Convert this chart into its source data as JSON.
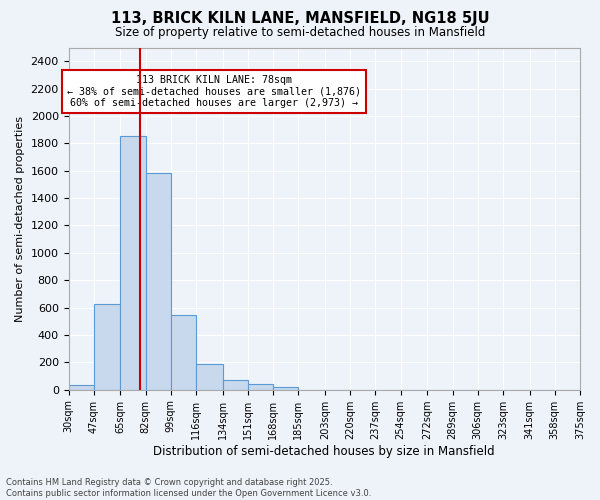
{
  "title": "113, BRICK KILN LANE, MANSFIELD, NG18 5JU",
  "subtitle": "Size of property relative to semi-detached houses in Mansfield",
  "xlabel": "Distribution of semi-detached houses by size in Mansfield",
  "ylabel": "Number of semi-detached properties",
  "bar_color": "#c8d9ed",
  "bar_edge_color": "#5b9bd5",
  "background_color": "#eef3f9",
  "grid_color": "#ffffff",
  "bins": [
    30,
    47,
    65,
    82,
    99,
    116,
    134,
    151,
    168,
    185,
    203,
    220,
    237,
    254,
    272,
    289,
    306,
    323,
    341,
    358,
    375
  ],
  "bin_labels": [
    "30sqm",
    "47sqm",
    "65sqm",
    "82sqm",
    "99sqm",
    "116sqm",
    "134sqm",
    "151sqm",
    "168sqm",
    "185sqm",
    "203sqm",
    "220sqm",
    "237sqm",
    "254sqm",
    "272sqm",
    "289sqm",
    "306sqm",
    "323sqm",
    "341sqm",
    "358sqm",
    "375sqm"
  ],
  "counts": [
    35,
    625,
    1855,
    1580,
    545,
    185,
    70,
    42,
    20,
    0,
    0,
    0,
    0,
    0,
    0,
    0,
    0,
    0,
    0,
    0
  ],
  "vline_x": 78,
  "vline_color": "#cc0000",
  "ylim": [
    0,
    2500
  ],
  "yticks": [
    0,
    200,
    400,
    600,
    800,
    1000,
    1200,
    1400,
    1600,
    1800,
    2000,
    2200,
    2400
  ],
  "annotation_title": "113 BRICK KILN LANE: 78sqm",
  "annotation_line1": "← 38% of semi-detached houses are smaller (1,876)",
  "annotation_line2": "60% of semi-detached houses are larger (2,973) →",
  "annotation_box_color": "#ffffff",
  "annotation_box_edge": "#cc0000",
  "footnote1": "Contains HM Land Registry data © Crown copyright and database right 2025.",
  "footnote2": "Contains public sector information licensed under the Open Government Licence v3.0."
}
